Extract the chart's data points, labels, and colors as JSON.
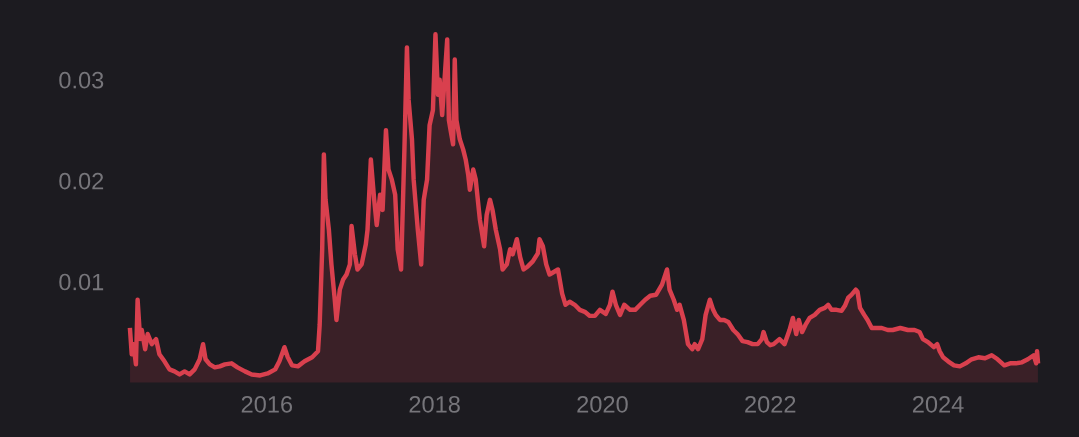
{
  "chart_data": {
    "type": "area",
    "x": [
      2014.37,
      2014.39,
      2014.41,
      2014.44,
      2014.46,
      2014.49,
      2014.51,
      2014.55,
      2014.58,
      2014.63,
      2014.68,
      2014.72,
      2014.78,
      2014.84,
      2014.9,
      2014.96,
      2015.02,
      2015.08,
      2015.14,
      2015.2,
      2015.24,
      2015.27,
      2015.32,
      2015.38,
      2015.44,
      2015.5,
      2015.58,
      2015.65,
      2015.74,
      2015.82,
      2015.92,
      2016.01,
      2016.1,
      2016.15,
      2016.21,
      2016.25,
      2016.3,
      2016.37,
      2016.45,
      2016.54,
      2016.61,
      2016.63,
      2016.66,
      2016.68,
      2016.7,
      2016.74,
      2016.77,
      2016.81,
      2016.83,
      2016.87,
      2016.91,
      2016.95,
      2016.99,
      2017.01,
      2017.05,
      2017.08,
      2017.13,
      2017.18,
      2017.2,
      2017.24,
      2017.28,
      2017.31,
      2017.35,
      2017.38,
      2017.42,
      2017.45,
      2017.49,
      2017.53,
      2017.56,
      2017.6,
      2017.62,
      2017.64,
      2017.67,
      2017.69,
      2017.73,
      2017.75,
      2017.8,
      2017.84,
      2017.87,
      2017.91,
      2017.94,
      2017.98,
      2018.01,
      2018.04,
      2018.06,
      2018.09,
      2018.11,
      2018.15,
      2018.17,
      2018.19,
      2018.22,
      2018.24,
      2018.26,
      2018.3,
      2018.34,
      2018.37,
      2018.4,
      2018.42,
      2018.46,
      2018.49,
      2018.54,
      2018.59,
      2018.62,
      2018.66,
      2018.69,
      2018.73,
      2018.78,
      2018.81,
      2018.86,
      2018.9,
      2018.93,
      2018.98,
      2019.02,
      2019.06,
      2019.11,
      2019.17,
      2019.23,
      2019.25,
      2019.29,
      2019.33,
      2019.37,
      2019.43,
      2019.47,
      2019.52,
      2019.56,
      2019.61,
      2019.67,
      2019.73,
      2019.79,
      2019.85,
      2019.91,
      2019.97,
      2020.04,
      2020.09,
      2020.12,
      2020.16,
      2020.21,
      2020.26,
      2020.33,
      2020.39,
      2020.45,
      2020.51,
      2020.57,
      2020.64,
      2020.71,
      2020.77,
      2020.8,
      2020.85,
      2020.89,
      2020.92,
      2020.97,
      2021.02,
      2021.07,
      2021.1,
      2021.14,
      2021.19,
      2021.23,
      2021.28,
      2021.32,
      2021.35,
      2021.4,
      2021.45,
      2021.5,
      2021.56,
      2021.61,
      2021.67,
      2021.73,
      2021.79,
      2021.85,
      2021.9,
      2021.92,
      2021.96,
      2022.0,
      2022.04,
      2022.11,
      2022.17,
      2022.23,
      2022.27,
      2022.31,
      2022.34,
      2022.38,
      2022.42,
      2022.47,
      2022.53,
      2022.59,
      2022.65,
      2022.69,
      2022.73,
      2022.79,
      2022.85,
      2022.89,
      2022.93,
      2022.97,
      2023.02,
      2023.04,
      2023.07,
      2023.12,
      2023.16,
      2023.21,
      2023.26,
      2023.33,
      2023.4,
      2023.46,
      2023.55,
      2023.64,
      2023.72,
      2023.78,
      2023.82,
      2023.88,
      2023.95,
      2023.99,
      2024.02,
      2024.06,
      2024.12,
      2024.19,
      2024.26,
      2024.33,
      2024.4,
      2024.48,
      2024.56,
      2024.64,
      2024.71,
      2024.79,
      2024.86,
      2024.93,
      2025.0,
      2025.07,
      2025.14,
      2025.17,
      2025.18,
      2025.19
    ],
    "series": [
      {
        "color": "#d9404e",
        "values": [
          0.0052,
          0.0028,
          0.0038,
          0.0018,
          0.0082,
          0.0043,
          0.0052,
          0.0033,
          0.0048,
          0.0038,
          0.0043,
          0.0028,
          0.0021,
          0.0013,
          0.0011,
          0.0008,
          0.0011,
          0.0008,
          0.0013,
          0.0023,
          0.0038,
          0.0023,
          0.0018,
          0.0015,
          0.0016,
          0.0018,
          0.0019,
          0.0015,
          0.0011,
          0.0008,
          0.0007,
          0.0009,
          0.0013,
          0.0021,
          0.0035,
          0.0025,
          0.0017,
          0.0016,
          0.0021,
          0.0025,
          0.0031,
          0.0057,
          0.0132,
          0.0226,
          0.0181,
          0.0151,
          0.0117,
          0.0082,
          0.0062,
          0.0092,
          0.0102,
          0.0107,
          0.0117,
          0.0155,
          0.0127,
          0.0112,
          0.0117,
          0.0137,
          0.0151,
          0.0221,
          0.0181,
          0.0156,
          0.0186,
          0.0171,
          0.025,
          0.0211,
          0.0201,
          0.0186,
          0.0132,
          0.0112,
          0.0171,
          0.0231,
          0.0332,
          0.028,
          0.0241,
          0.0201,
          0.0151,
          0.0117,
          0.0181,
          0.0201,
          0.0255,
          0.027,
          0.0345,
          0.0285,
          0.03,
          0.0265,
          0.029,
          0.034,
          0.026,
          0.025,
          0.0236,
          0.032,
          0.026,
          0.0241,
          0.0231,
          0.0221,
          0.0206,
          0.0191,
          0.0211,
          0.0201,
          0.0161,
          0.0135,
          0.0166,
          0.0181,
          0.0171,
          0.0151,
          0.0132,
          0.0112,
          0.0117,
          0.0132,
          0.0127,
          0.0142,
          0.0124,
          0.0112,
          0.0115,
          0.012,
          0.0128,
          0.0142,
          0.0135,
          0.0117,
          0.0107,
          0.011,
          0.0112,
          0.0088,
          0.0077,
          0.008,
          0.0077,
          0.0072,
          0.007,
          0.0066,
          0.0066,
          0.0072,
          0.0068,
          0.0077,
          0.009,
          0.0077,
          0.0067,
          0.0077,
          0.0072,
          0.0072,
          0.0077,
          0.0082,
          0.0086,
          0.0087,
          0.0097,
          0.0112,
          0.0092,
          0.0082,
          0.0072,
          0.0077,
          0.0062,
          0.0038,
          0.0033,
          0.0038,
          0.0033,
          0.0043,
          0.0067,
          0.0082,
          0.0072,
          0.0067,
          0.0062,
          0.0062,
          0.006,
          0.0052,
          0.0048,
          0.0041,
          0.004,
          0.0038,
          0.0038,
          0.0043,
          0.005,
          0.004,
          0.0037,
          0.0038,
          0.0043,
          0.0038,
          0.0052,
          0.0064,
          0.0048,
          0.0062,
          0.005,
          0.0057,
          0.0064,
          0.0067,
          0.0072,
          0.0074,
          0.0077,
          0.0072,
          0.0072,
          0.0071,
          0.0076,
          0.0084,
          0.0087,
          0.0092,
          0.009,
          0.0074,
          0.0067,
          0.0062,
          0.0054,
          0.0054,
          0.0054,
          0.0052,
          0.0052,
          0.0054,
          0.0052,
          0.0052,
          0.005,
          0.0043,
          0.004,
          0.0035,
          0.0038,
          0.0031,
          0.0025,
          0.0021,
          0.0017,
          0.0016,
          0.0019,
          0.0023,
          0.0025,
          0.0024,
          0.0027,
          0.0023,
          0.0017,
          0.0019,
          0.0019,
          0.002,
          0.0023,
          0.0027,
          0.0019,
          0.0031,
          0.0021
        ]
      }
    ],
    "xlim": [
      2012.82,
      2025.68
    ],
    "ylim": [
      -0.0054,
      0.0379
    ],
    "xticks": [
      2016,
      2018,
      2020,
      2022,
      2024
    ],
    "yticks": [
      0.01,
      0.02,
      0.03
    ],
    "grid": false,
    "marker": "none",
    "line_style": "solid"
  }
}
